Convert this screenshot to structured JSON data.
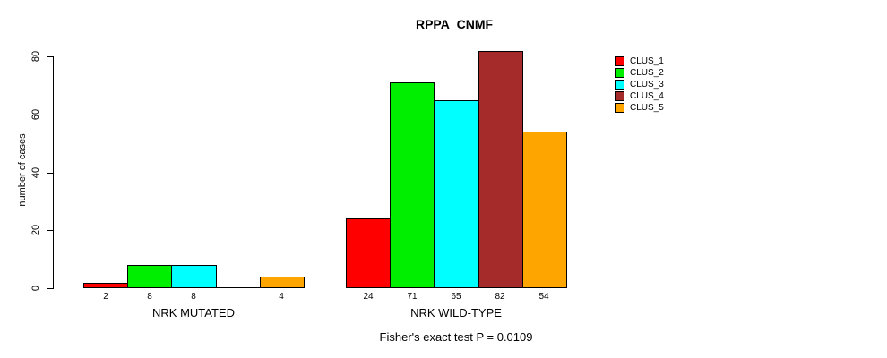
{
  "chart_data": {
    "type": "bar",
    "title": "RPPA_CNMF",
    "xlabel": "",
    "ylabel": "number of cases",
    "ylim": [
      0,
      80
    ],
    "yticks": [
      0,
      20,
      40,
      60,
      80
    ],
    "grid": false,
    "legend_position": "top-right-inside",
    "annotation": "Fisher's exact test P = 0.0109",
    "categories": [
      "NRK MUTATED",
      "NRK WILD-TYPE"
    ],
    "series": [
      {
        "name": "CLUS_1",
        "color": "#FF0000",
        "values": [
          2,
          24
        ]
      },
      {
        "name": "CLUS_2",
        "color": "#00EE00",
        "values": [
          8,
          71
        ]
      },
      {
        "name": "CLUS_3",
        "color": "#00FFFF",
        "values": [
          8,
          65
        ]
      },
      {
        "name": "CLUS_4",
        "color": "#A52A2A",
        "values": [
          0,
          82
        ]
      },
      {
        "name": "CLUS_5",
        "color": "#FFA500",
        "values": [
          4,
          54
        ]
      }
    ],
    "groups": [
      {
        "label": "NRK MUTATED",
        "values": [
          2,
          8,
          8,
          0,
          4
        ],
        "bar_labels": [
          "2",
          "8",
          "8",
          "",
          "4"
        ]
      },
      {
        "label": "NRK WILD-TYPE",
        "values": [
          24,
          71,
          65,
          82,
          54
        ],
        "bar_labels": [
          "24",
          "71",
          "65",
          "82",
          "54"
        ]
      }
    ]
  }
}
